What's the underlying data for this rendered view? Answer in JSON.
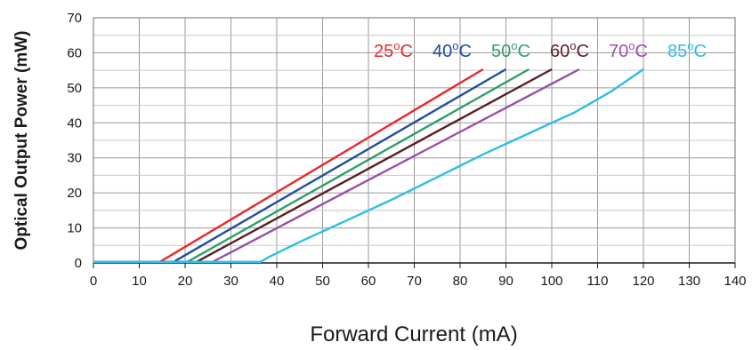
{
  "chart_data": {
    "type": "line",
    "xlabel": "Forward Current (mA)",
    "ylabel": "Optical Output Power (mW)",
    "xlim": [
      0,
      140
    ],
    "ylim": [
      0,
      70
    ],
    "xticks": [
      0,
      10,
      20,
      30,
      40,
      50,
      60,
      70,
      80,
      90,
      100,
      110,
      120,
      130,
      140
    ],
    "yticks": [
      0,
      10,
      20,
      30,
      40,
      50,
      60,
      70
    ],
    "grid": true,
    "legend_position": "top-right",
    "series": [
      {
        "name": "25°C",
        "temp": "25",
        "unit": "°C",
        "color": "#e8282c",
        "x": [
          0,
          14.5,
          85
        ],
        "y": [
          0.3,
          0.3,
          55.3
        ]
      },
      {
        "name": "40°C",
        "temp": "40",
        "unit": "°C",
        "color": "#1f4e9c",
        "x": [
          0,
          17.5,
          90
        ],
        "y": [
          0.3,
          0.3,
          55.3
        ]
      },
      {
        "name": "50°C",
        "temp": "50",
        "unit": "°C",
        "color": "#2e9e6b",
        "x": [
          0,
          20.5,
          95
        ],
        "y": [
          0.3,
          0.3,
          55.3
        ]
      },
      {
        "name": "60°C",
        "temp": "60",
        "unit": "°C",
        "color": "#5a1e22",
        "x": [
          0,
          22.5,
          100
        ],
        "y": [
          0.3,
          0.3,
          55.3
        ]
      },
      {
        "name": "70°C",
        "temp": "70",
        "unit": "°C",
        "color": "#9b4fa8",
        "x": [
          0,
          26,
          106
        ],
        "y": [
          0.3,
          0.3,
          55.3
        ]
      },
      {
        "name": "85°C",
        "temp": "85",
        "unit": "°C",
        "color": "#2fbde6",
        "x": [
          0,
          36.5,
          38,
          45,
          55,
          65,
          75,
          85,
          95,
          105,
          113,
          120
        ],
        "y": [
          0.3,
          0.3,
          1.5,
          6,
          12,
          18,
          24.5,
          31,
          37,
          43,
          49,
          55.3
        ]
      }
    ]
  }
}
